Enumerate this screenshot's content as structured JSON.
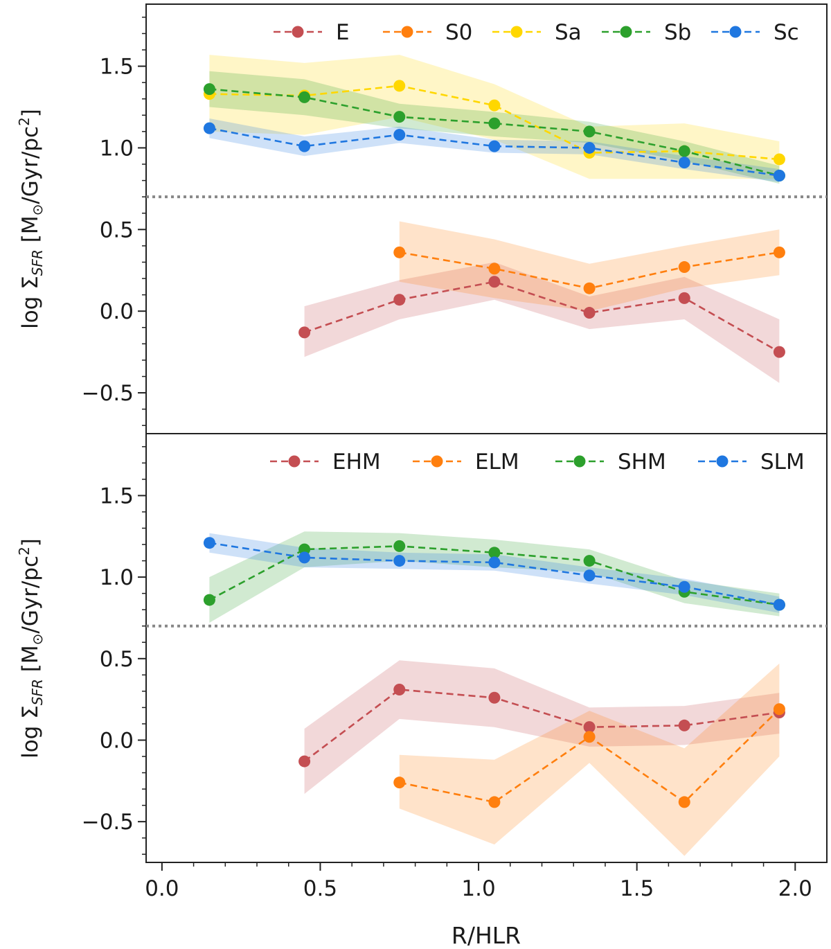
{
  "chart_data": [
    {
      "type": "line",
      "panel": "top",
      "xlabel": "",
      "ylabel": "log ΣSFR [M⊙/Gyr/pc²]",
      "ylabel_parts": {
        "prefix": "log Σ",
        "sub": "SFR",
        "mid": " [M",
        "sun": "⊙",
        "unit": "/Gyr/pc",
        "sup": "2",
        "close": "]"
      },
      "xlim": [
        -0.05,
        2.1
      ],
      "ylim": [
        -0.75,
        1.88
      ],
      "yticks": [
        -0.5,
        0.0,
        0.5,
        1.0,
        1.5
      ],
      "ytick_labels": [
        "−0.5",
        "0.0",
        "0.5",
        "1.0",
        "1.5"
      ],
      "threshold_y": 0.7,
      "legend_position": "top-right",
      "series": [
        {
          "name": "E",
          "color": "#c44e52",
          "x": [
            0.45,
            0.75,
            1.05,
            1.35,
            1.65,
            1.95
          ],
          "values": [
            -0.13,
            0.07,
            0.18,
            -0.01,
            0.08,
            -0.25
          ],
          "lower": [
            -0.28,
            -0.05,
            0.07,
            -0.11,
            -0.05,
            -0.44
          ],
          "upper": [
            0.03,
            0.19,
            0.3,
            0.09,
            0.21,
            -0.05
          ]
        },
        {
          "name": "S0",
          "color": "#ff7f0e",
          "x": [
            0.75,
            1.05,
            1.35,
            1.65,
            1.95
          ],
          "values": [
            0.36,
            0.26,
            0.14,
            0.27,
            0.36
          ],
          "lower": [
            0.18,
            0.08,
            0.0,
            0.14,
            0.22
          ],
          "upper": [
            0.55,
            0.44,
            0.29,
            0.4,
            0.5
          ]
        },
        {
          "name": "Sa",
          "color": "#ffd700",
          "x": [
            0.15,
            0.45,
            0.75,
            1.05,
            1.35,
            1.65,
            1.95
          ],
          "values": [
            1.33,
            1.32,
            1.38,
            1.26,
            0.97,
            0.98,
            0.93
          ],
          "lower": [
            1.1,
            1.08,
            1.19,
            1.05,
            0.81,
            0.81,
            0.81
          ],
          "upper": [
            1.57,
            1.52,
            1.57,
            1.39,
            1.13,
            1.15,
            1.04
          ]
        },
        {
          "name": "Sb",
          "color": "#2ca02c",
          "x": [
            0.15,
            0.45,
            0.75,
            1.05,
            1.35,
            1.65,
            1.95
          ],
          "values": [
            1.36,
            1.31,
            1.19,
            1.15,
            1.1,
            0.98,
            0.83
          ],
          "lower": [
            1.25,
            1.2,
            1.12,
            1.07,
            1.03,
            0.92,
            0.78
          ],
          "upper": [
            1.47,
            1.42,
            1.27,
            1.22,
            1.16,
            1.04,
            0.89
          ]
        },
        {
          "name": "Sc",
          "color": "#1f77e0",
          "x": [
            0.15,
            0.45,
            0.75,
            1.05,
            1.35,
            1.65,
            1.95
          ],
          "values": [
            1.12,
            1.01,
            1.08,
            1.01,
            1.0,
            0.91,
            0.83
          ],
          "lower": [
            1.06,
            0.95,
            1.03,
            0.97,
            0.96,
            0.87,
            0.79
          ],
          "upper": [
            1.18,
            1.07,
            1.13,
            1.05,
            1.04,
            0.95,
            0.87
          ]
        }
      ]
    },
    {
      "type": "line",
      "panel": "bottom",
      "xlabel": "R/HLR",
      "ylabel": "log ΣSFR [M⊙/Gyr/pc²]",
      "ylabel_parts": {
        "prefix": "log Σ",
        "sub": "SFR",
        "mid": " [M",
        "sun": "⊙",
        "unit": "/Gyr/pc",
        "sup": "2",
        "close": "]"
      },
      "xlim": [
        -0.05,
        2.1
      ],
      "ylim": [
        -0.75,
        1.88
      ],
      "xticks": [
        0.0,
        0.5,
        1.0,
        1.5,
        2.0
      ],
      "xtick_labels": [
        "0.0",
        "0.5",
        "1.0",
        "1.5",
        "2.0"
      ],
      "yticks": [
        -0.5,
        0.0,
        0.5,
        1.0,
        1.5
      ],
      "ytick_labels": [
        "−0.5",
        "0.0",
        "0.5",
        "1.0",
        "1.5"
      ],
      "threshold_y": 0.7,
      "legend_position": "top-right",
      "series": [
        {
          "name": "EHM",
          "color": "#c44e52",
          "x": [
            0.45,
            0.75,
            1.05,
            1.35,
            1.65,
            1.95
          ],
          "values": [
            -0.13,
            0.31,
            0.26,
            0.08,
            0.09,
            0.17
          ],
          "lower": [
            -0.33,
            0.13,
            0.08,
            -0.04,
            -0.03,
            0.04
          ],
          "upper": [
            0.07,
            0.49,
            0.44,
            0.2,
            0.21,
            0.29
          ]
        },
        {
          "name": "ELM",
          "color": "#ff7f0e",
          "x": [
            0.75,
            1.05,
            1.35,
            1.65,
            1.95
          ],
          "values": [
            -0.26,
            -0.38,
            0.02,
            -0.38,
            0.19
          ],
          "lower": [
            -0.42,
            -0.64,
            -0.14,
            -0.71,
            -0.1
          ],
          "upper": [
            -0.09,
            -0.12,
            0.18,
            -0.05,
            0.47
          ]
        },
        {
          "name": "SHM",
          "color": "#2ca02c",
          "x": [
            0.15,
            0.45,
            0.75,
            1.05,
            1.35,
            1.65,
            1.95
          ],
          "values": [
            0.86,
            1.17,
            1.19,
            1.15,
            1.1,
            0.91,
            0.83
          ],
          "lower": [
            0.72,
            1.06,
            1.1,
            1.06,
            1.03,
            0.84,
            0.76
          ],
          "upper": [
            1.0,
            1.28,
            1.27,
            1.23,
            1.17,
            0.98,
            0.9
          ]
        },
        {
          "name": "SLM",
          "color": "#1f77e0",
          "x": [
            0.15,
            0.45,
            0.75,
            1.05,
            1.35,
            1.65,
            1.95
          ],
          "values": [
            1.21,
            1.12,
            1.1,
            1.09,
            1.01,
            0.94,
            0.83
          ],
          "lower": [
            1.15,
            1.06,
            1.05,
            1.04,
            0.96,
            0.89,
            0.78
          ],
          "upper": [
            1.27,
            1.18,
            1.15,
            1.14,
            1.06,
            0.99,
            0.88
          ]
        }
      ]
    }
  ]
}
